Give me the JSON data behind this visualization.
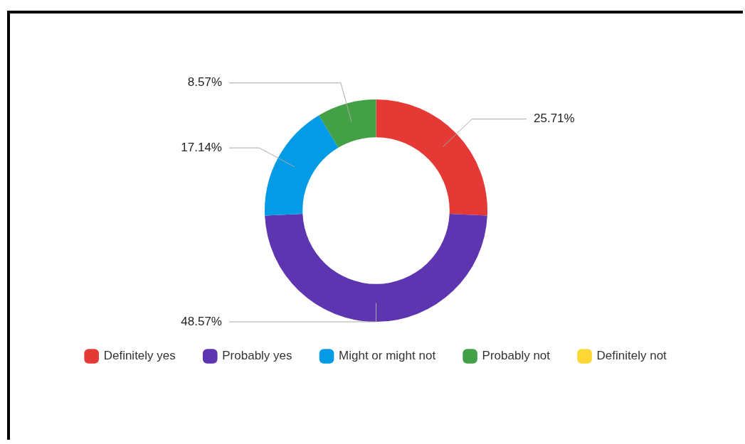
{
  "chart_data": {
    "type": "donut",
    "categories": [
      "Definitely yes",
      "Probably yes",
      "Might or might not",
      "Probably not",
      "Definitely not"
    ],
    "values": [
      25.71,
      48.57,
      17.14,
      8.57,
      0
    ],
    "colors": [
      "#e53935",
      "#5e35b1",
      "#039be5",
      "#43a047",
      "#fdd835"
    ],
    "value_labels": [
      "25.71%",
      "48.57%",
      "17.14%",
      "8.57%",
      null
    ],
    "legend": "bottom"
  }
}
